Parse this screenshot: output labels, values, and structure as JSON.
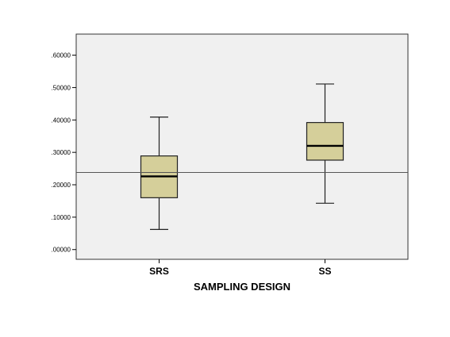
{
  "chart_data": {
    "type": "boxplot",
    "title": "",
    "xlabel": "SAMPLING DESIGN",
    "ylabel": "",
    "ylim": [
      -0.03,
      0.665
    ],
    "yticks": [
      0.0,
      0.1,
      0.2,
      0.3,
      0.4,
      0.5,
      0.6
    ],
    "ytick_labels": [
      ".00000",
      ".10000",
      ".20000",
      ".30000",
      ".40000",
      ".50000",
      ".60000"
    ],
    "categories": [
      "SRS",
      "SS"
    ],
    "boxes": [
      {
        "category": "SRS",
        "min": 0.062,
        "q1": 0.16,
        "median": 0.226,
        "q3": 0.289,
        "max": 0.409
      },
      {
        "category": "SS",
        "min": 0.143,
        "q1": 0.276,
        "median": 0.32,
        "q3": 0.392,
        "max": 0.511
      }
    ],
    "reference_line": 0.238,
    "grid": false,
    "colors": {
      "plot_background": "#f0f0f0",
      "box_fill": "#d5cf9a",
      "box_stroke": "#222222",
      "median": "#000000",
      "reference_line": "#555555"
    }
  }
}
